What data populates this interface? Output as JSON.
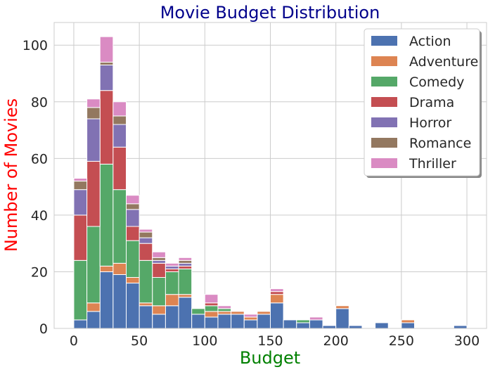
{
  "chart_data": {
    "type": "bar",
    "stacked": true,
    "title": "Movie Budget Distribution",
    "title_color": "#00008b",
    "xlabel": "Budget",
    "xlabel_color": "#008000",
    "ylabel": "Number of Movies",
    "ylabel_color": "#ff0000",
    "xlim": [
      -15,
      315
    ],
    "ylim": [
      0,
      108
    ],
    "x_ticks": [
      0,
      50,
      100,
      150,
      200,
      250,
      300
    ],
    "y_ticks": [
      0,
      20,
      40,
      60,
      80,
      100
    ],
    "grid": true,
    "legend_position": "top-right",
    "bin_edges": [
      0,
      10,
      20,
      30,
      40,
      50,
      60,
      70,
      80,
      90,
      100,
      110,
      120,
      130,
      140,
      150,
      160,
      170,
      180,
      190,
      200,
      210,
      220,
      230,
      240,
      250,
      260,
      270,
      280,
      290,
      300
    ],
    "series": [
      {
        "name": "Action",
        "color": "#4c72b0",
        "values": [
          3,
          6,
          20,
          19,
          16,
          8,
          5,
          8,
          11,
          5,
          4,
          5,
          5,
          3,
          5,
          9,
          3,
          2,
          3,
          1,
          7,
          1,
          0,
          2,
          0,
          2,
          0,
          0,
          0,
          1
        ]
      },
      {
        "name": "Adventure",
        "color": "#dd8452",
        "values": [
          0,
          3,
          2,
          4,
          2,
          1,
          3,
          4,
          1,
          0,
          2,
          1,
          1,
          1,
          1,
          3,
          0,
          0,
          0,
          0,
          1,
          0,
          0,
          0,
          0,
          1,
          0,
          0,
          0,
          0
        ]
      },
      {
        "name": "Comedy",
        "color": "#55a868",
        "values": [
          21,
          27,
          36,
          26,
          13,
          15,
          10,
          8,
          9,
          2,
          2,
          1,
          0,
          0,
          0,
          0,
          0,
          1,
          0,
          0,
          0,
          0,
          0,
          0,
          0,
          0,
          0,
          0,
          0,
          0
        ]
      },
      {
        "name": "Drama",
        "color": "#c44e52",
        "values": [
          16,
          23,
          26,
          15,
          5,
          6,
          5,
          1,
          1,
          0,
          1,
          0,
          0,
          0,
          0,
          1,
          0,
          0,
          0,
          0,
          0,
          0,
          0,
          0,
          0,
          0,
          0,
          0,
          0,
          0
        ]
      },
      {
        "name": "Horror",
        "color": "#8172b3",
        "values": [
          9,
          15,
          9,
          8,
          6,
          2,
          1,
          1,
          1,
          0,
          0,
          0,
          0,
          0,
          0,
          0,
          0,
          0,
          0,
          0,
          0,
          0,
          0,
          0,
          0,
          0,
          0,
          0,
          0,
          0
        ]
      },
      {
        "name": "Romance",
        "color": "#937860",
        "values": [
          3,
          4,
          1,
          3,
          2,
          2,
          1,
          0,
          1,
          0,
          0,
          0,
          0,
          0,
          0,
          0,
          0,
          0,
          0,
          0,
          0,
          0,
          0,
          0,
          0,
          0,
          0,
          0,
          0,
          0
        ]
      },
      {
        "name": "Thriller",
        "color": "#da8bc3",
        "values": [
          1,
          3,
          9,
          5,
          3,
          1,
          2,
          1,
          1,
          0,
          3,
          1,
          0,
          1,
          0,
          1,
          0,
          0,
          1,
          0,
          0,
          0,
          0,
          0,
          0,
          0,
          0,
          0,
          0,
          0
        ]
      }
    ]
  }
}
